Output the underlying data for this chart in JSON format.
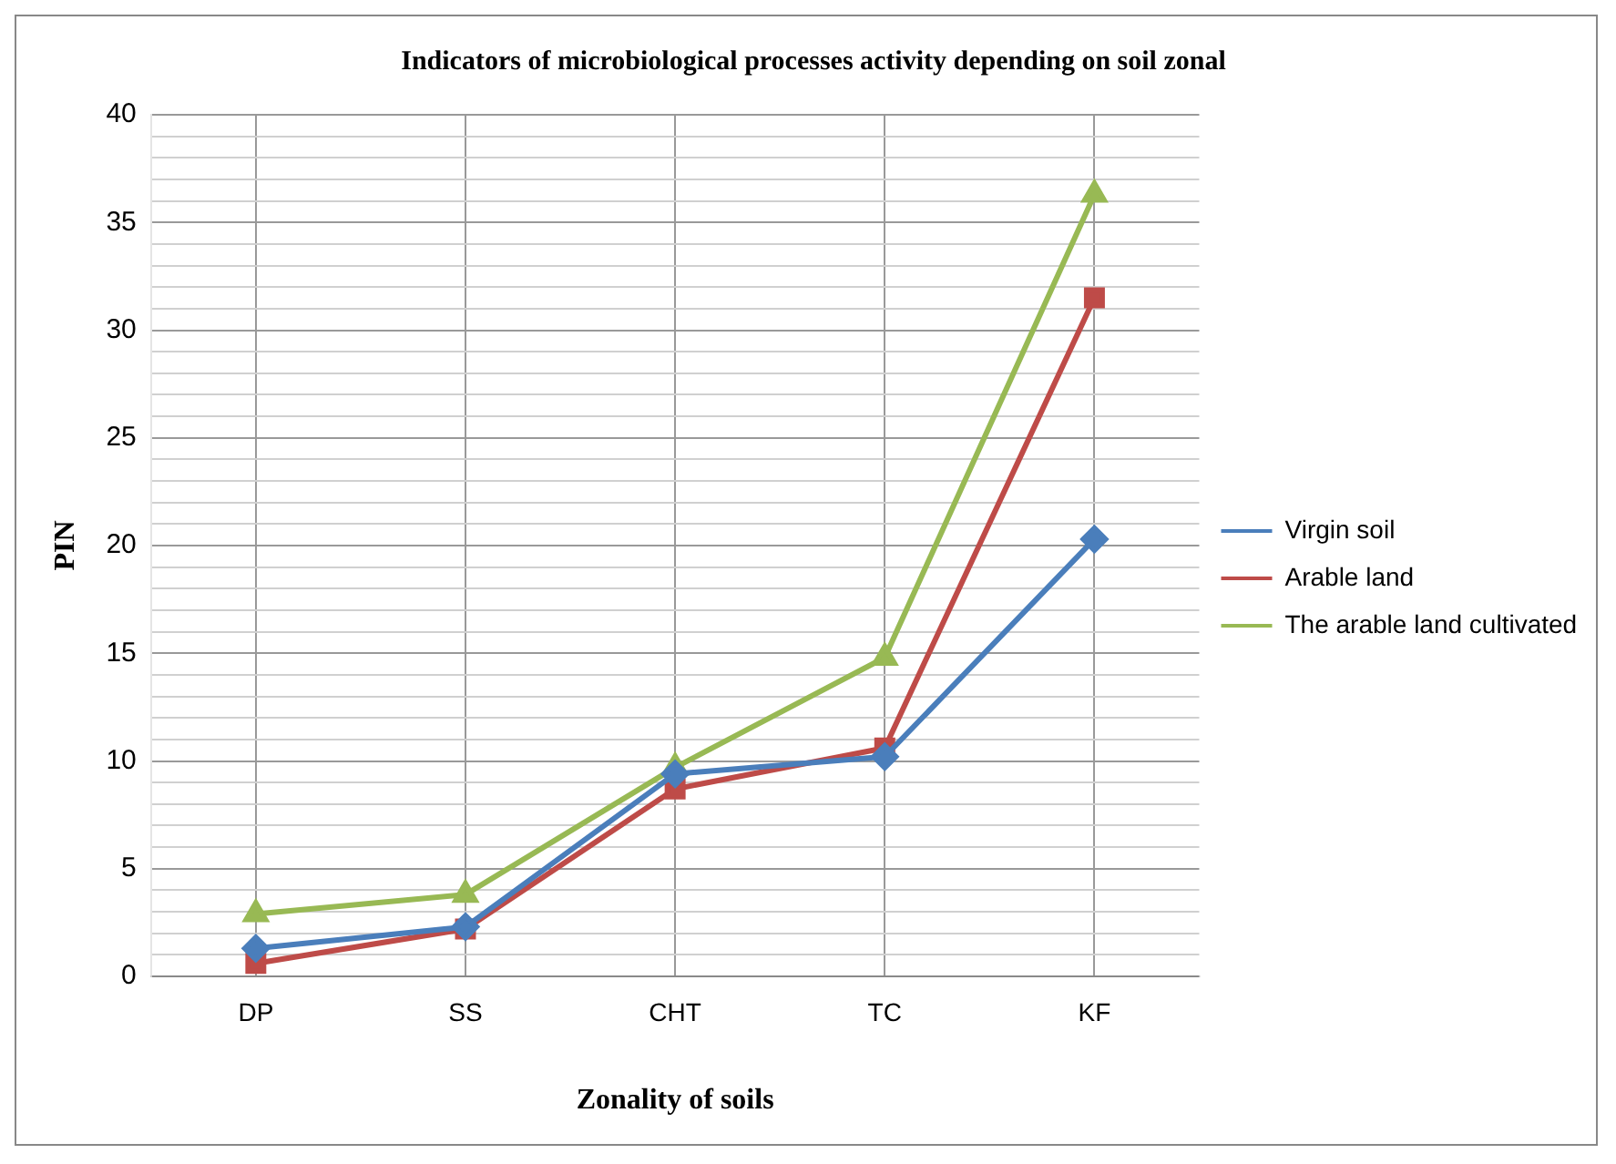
{
  "chart_data": {
    "type": "line",
    "title": "Indicators of microbiological processes activity depending on soil zonal",
    "xlabel": "Zonality of soils",
    "ylabel": "PIN",
    "categories": [
      "DP",
      "SS",
      "CHT",
      "TC",
      "KF"
    ],
    "series": [
      {
        "name": "Virgin soil",
        "color": "#4a7ebb",
        "marker": "diamond",
        "values": [
          1.3,
          2.3,
          9.4,
          10.2,
          20.3
        ]
      },
      {
        "name": "Arable land",
        "color": "#be4b48",
        "marker": "square",
        "values": [
          0.6,
          2.2,
          8.7,
          10.6,
          31.5
        ]
      },
      {
        "name": "The arable land cultivated",
        "color": "#98b954",
        "marker": "triangle",
        "values": [
          2.9,
          3.8,
          9.7,
          14.8,
          36.3
        ]
      }
    ],
    "ylim": [
      0,
      40
    ],
    "yticks": [
      0,
      5,
      10,
      15,
      20,
      25,
      30,
      35,
      40
    ],
    "grid": true,
    "legend": "right",
    "line_style": "solid"
  }
}
